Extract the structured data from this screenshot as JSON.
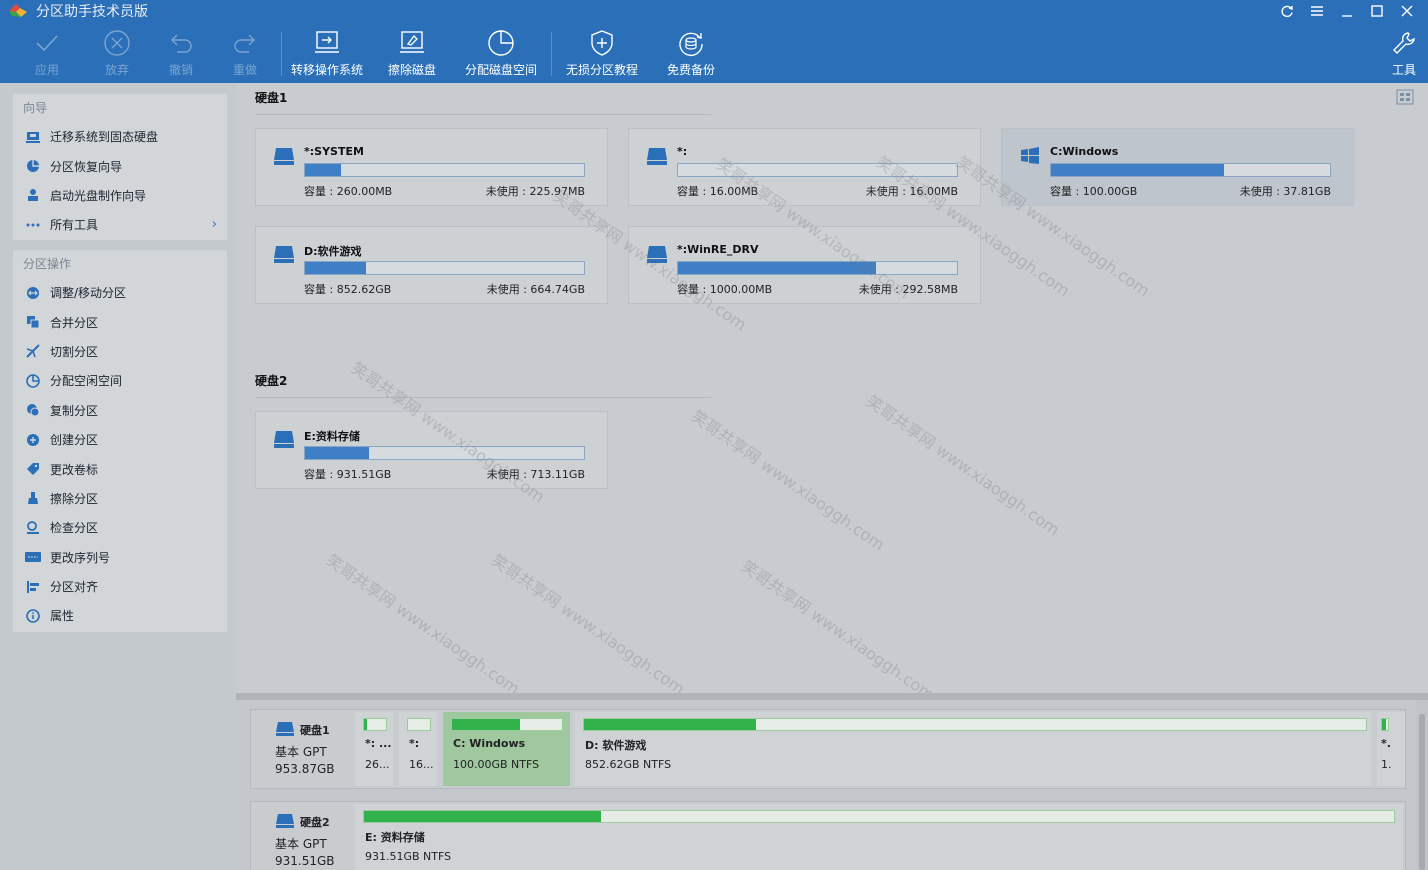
{
  "app": {
    "title": "分区助手技术员版"
  },
  "toolbar": {
    "apply": "应用",
    "discard": "放弃",
    "undo": "撤销",
    "redo": "重做",
    "migrate_os": "转移操作系统",
    "wipe_disk": "擦除磁盘",
    "allocate_space": "分配磁盘空间",
    "lossless_tutorial": "无损分区教程",
    "free_backup": "免费备份",
    "tools": "工具"
  },
  "sidebar": {
    "wizard_title": "向导",
    "wizard_items": [
      {
        "label": "迁移系统到固态硬盘",
        "icon": "migrate-icon"
      },
      {
        "label": "分区恢复向导",
        "icon": "recover-icon"
      },
      {
        "label": "启动光盘制作向导",
        "icon": "bootdisk-icon"
      },
      {
        "label": "所有工具",
        "icon": "more-icon"
      }
    ],
    "ops_title": "分区操作",
    "ops_items": [
      {
        "label": "调整/移动分区",
        "icon": "resize-icon"
      },
      {
        "label": "合并分区",
        "icon": "merge-icon"
      },
      {
        "label": "切割分区",
        "icon": "split-icon"
      },
      {
        "label": "分配空闲空间",
        "icon": "allocate-icon"
      },
      {
        "label": "复制分区",
        "icon": "copy-icon"
      },
      {
        "label": "创建分区",
        "icon": "create-icon"
      },
      {
        "label": "更改卷标",
        "icon": "label-icon"
      },
      {
        "label": "擦除分区",
        "icon": "wipe-icon"
      },
      {
        "label": "检查分区",
        "icon": "check-icon"
      },
      {
        "label": "更改序列号",
        "icon": "serial-icon"
      },
      {
        "label": "分区对齐",
        "icon": "align-icon"
      },
      {
        "label": "属性",
        "icon": "info-icon"
      }
    ]
  },
  "main": {
    "disk1": {
      "title": "硬盘1",
      "partitions": [
        {
          "name": "*:SYSTEM",
          "capacity": "容量 : 260.00MB",
          "free": "未使用 : 225.97MB",
          "used_fraction": 0.13
        },
        {
          "name": "*:",
          "capacity": "容量 : 16.00MB",
          "free": "未使用 : 16.00MB",
          "used_fraction": 0.0
        },
        {
          "name": "C:Windows",
          "capacity": "容量 : 100.00GB",
          "free": "未使用 : 37.81GB",
          "used_fraction": 0.62
        },
        {
          "name": "D:软件游戏",
          "capacity": "容量 : 852.62GB",
          "free": "未使用 : 664.74GB",
          "used_fraction": 0.22
        },
        {
          "name": "*:WinRE_DRV",
          "capacity": "容量 : 1000.00MB",
          "free": "未使用 : 292.58MB",
          "used_fraction": 0.71
        }
      ]
    },
    "disk2": {
      "title": "硬盘2",
      "partitions": [
        {
          "name": "E:资料存储",
          "capacity": "容量 : 931.51GB",
          "free": "未使用 : 713.11GB",
          "used_fraction": 0.23
        }
      ]
    },
    "watermark_text": "笑哥共享网 www.xiaoggh.com"
  },
  "bottom": {
    "disk1": {
      "name": "硬盘1",
      "type": "基本 GPT",
      "size": "953.87GB",
      "segments": [
        {
          "name": "*: ...",
          "info": "26...",
          "used_fraction": 0.13
        },
        {
          "name": "*:",
          "info": "16...",
          "used_fraction": 0.0
        },
        {
          "name": "C: Windows",
          "info": "100.00GB NTFS",
          "used_fraction": 0.62
        },
        {
          "name": "D: 软件游戏",
          "info": "852.62GB NTFS",
          "used_fraction": 0.22
        },
        {
          "name": "*.",
          "info": "1.",
          "used_fraction": 0.71
        }
      ]
    },
    "disk2": {
      "name": "硬盘2",
      "type": "基本 GPT",
      "size": "931.51GB",
      "segments": [
        {
          "name": "E: 资料存储",
          "info": "931.51GB NTFS",
          "used_fraction": 0.23
        }
      ]
    }
  },
  "colors": {
    "accent": "#2a6fb7",
    "usage_blue": "#3f7fc6",
    "usage_green": "#32b24a"
  }
}
